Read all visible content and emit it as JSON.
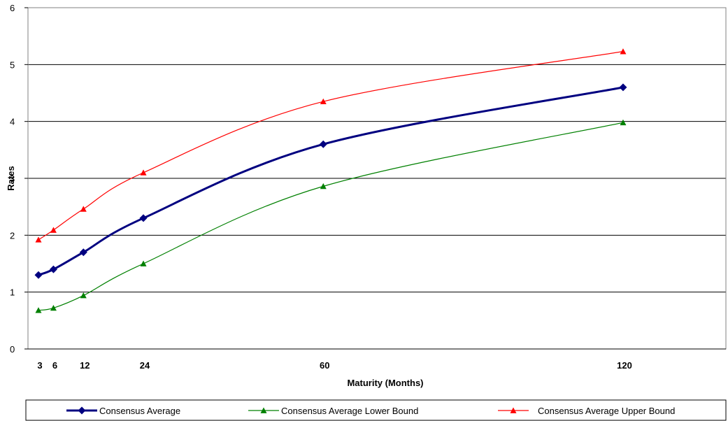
{
  "chart_data": {
    "type": "line",
    "xlabel": "Maturity (Months)",
    "ylabel": "Rates",
    "ylim": [
      0,
      6
    ],
    "yticks": [
      "0",
      "1",
      "2",
      "3",
      "4",
      "5",
      "6"
    ],
    "xticks": [
      {
        "value": 3,
        "label": "3"
      },
      {
        "value": 6,
        "label": "6"
      },
      {
        "value": 12,
        "label": "12"
      },
      {
        "value": 24,
        "label": "24"
      },
      {
        "value": 60,
        "label": "60"
      },
      {
        "value": 120,
        "label": "120"
      }
    ],
    "x": [
      3,
      6,
      12,
      24,
      60,
      120
    ],
    "grid": true,
    "legend_position": "bottom",
    "series": [
      {
        "name": "Consensus Average",
        "color": "#000080",
        "marker": "diamond",
        "values": [
          1.3,
          1.4,
          1.7,
          2.3,
          3.6,
          4.6
        ]
      },
      {
        "name": "Consensus Average Lower Bound",
        "color": "#008000",
        "marker": "triangle",
        "values": [
          0.68,
          0.72,
          0.94,
          1.5,
          2.86,
          3.98
        ]
      },
      {
        "name": "Consensus Average Upper Bound",
        "color": "#ff0000",
        "marker": "triangle",
        "values": [
          1.92,
          2.09,
          2.46,
          3.1,
          4.35,
          5.23
        ]
      }
    ]
  }
}
